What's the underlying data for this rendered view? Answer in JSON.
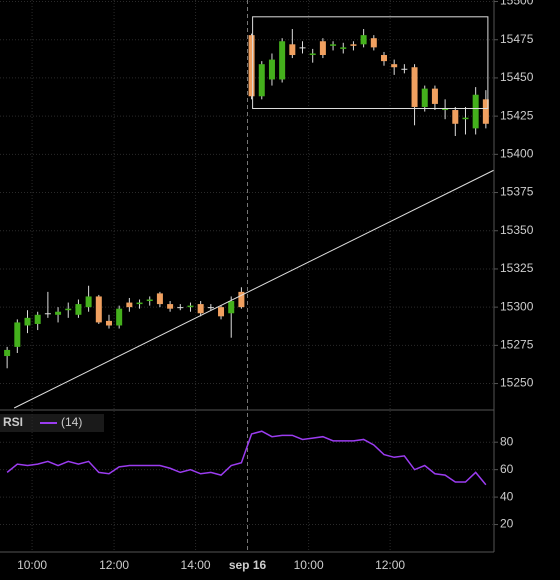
{
  "chart_data": [
    {
      "type": "candlestick",
      "up_color": "#44b01c",
      "down_color": "#f0a060",
      "open": [
        15268,
        15274,
        15288,
        15289,
        15296,
        15295,
        15298,
        15295,
        15300,
        15307,
        15291,
        15288,
        15303,
        15302,
        15304,
        15309,
        15302,
        15300,
        15300,
        15302,
        15300,
        15300,
        15296,
        15310,
        15478,
        15438,
        15449,
        15449,
        15472,
        15470,
        15465,
        15474,
        15471,
        15469,
        15472,
        15472,
        15476,
        15465,
        15459,
        15456,
        15457,
        15431,
        15443,
        15429,
        15429,
        15423,
        15417,
        15436
      ],
      "high": [
        15274,
        15292,
        15298,
        15297,
        15310,
        15300,
        15303,
        15305,
        15314,
        15308,
        15295,
        15301,
        15306,
        15305,
        15307,
        15310,
        15304,
        15302,
        15303,
        15304,
        15302,
        15301,
        15307,
        15313,
        15479,
        15461,
        15466,
        15476,
        15482,
        15474,
        15469,
        15476,
        15474,
        15473,
        15474,
        15482,
        15478,
        15467,
        15462,
        15459,
        15459,
        15445,
        15445,
        15436,
        15431,
        15431,
        15444,
        15442
      ],
      "low": [
        15260,
        15270,
        15283,
        15285,
        15293,
        15290,
        15293,
        15293,
        15297,
        15289,
        15286,
        15286,
        15297,
        15299,
        15301,
        15300,
        15297,
        15298,
        15297,
        15294,
        15298,
        15292,
        15280,
        15299,
        15436,
        15436,
        15445,
        15447,
        15463,
        15466,
        15460,
        15463,
        15468,
        15466,
        15468,
        15470,
        15468,
        15458,
        15452,
        15453,
        15419,
        15428,
        15429,
        15423,
        15412,
        15413,
        15413,
        15417
      ],
      "close": [
        15272,
        15290,
        15293,
        15295,
        15296,
        15297,
        15299,
        15302,
        15307,
        15290,
        15288,
        15299,
        15300,
        15303,
        15305,
        15302,
        15299,
        15300,
        15301,
        15296,
        15300,
        15294,
        15304,
        15300,
        15438,
        15459,
        15462,
        15474,
        15465,
        15470,
        15466,
        15465,
        15472,
        15470,
        15471,
        15478,
        15470,
        15461,
        15457,
        15456,
        15431,
        15443,
        15433,
        15430,
        15420,
        15424,
        15439,
        15420
      ],
      "xlim": [
        -0.7,
        47.8
      ],
      "xticks": [
        {
          "value": 2.45,
          "label": "10:00"
        },
        {
          "value": 10.5,
          "label": "12:00"
        },
        {
          "value": 18.5,
          "label": "14:00"
        },
        {
          "value": 23.6,
          "label": "sep 16"
        },
        {
          "value": 29.6,
          "label": "10:00"
        },
        {
          "value": 37.6,
          "label": "12:00"
        }
      ],
      "ylim": [
        15234,
        15501
      ],
      "yticks": [
        15250,
        15275,
        15300,
        15325,
        15350,
        15375,
        15400,
        15425,
        15450,
        15475,
        15500
      ],
      "grid": true,
      "trendline": {
        "x": [
          0.69,
          47.75
        ],
        "y": [
          15234,
          15389.5
        ]
      },
      "rectangle": {
        "x": [
          24.1,
          47.2
        ],
        "y": [
          15430,
          15490
        ]
      }
    },
    {
      "type": "line",
      "title": "RSI",
      "legend": "(14)",
      "color": "#9b3cf0",
      "values": [
        58,
        64,
        63,
        64,
        66,
        63,
        66,
        64,
        66,
        58,
        57,
        62,
        63,
        63,
        63,
        63,
        61,
        58,
        60,
        57,
        58,
        56,
        63,
        65,
        86,
        88,
        84,
        85,
        85,
        82,
        83,
        84,
        81,
        81,
        81,
        82,
        78,
        71,
        69,
        70,
        60,
        63,
        57,
        56,
        51,
        51,
        58,
        49
      ],
      "ylim": [
        0,
        102
      ],
      "yticks": [
        20,
        40,
        60,
        80
      ],
      "grid": true
    }
  ]
}
